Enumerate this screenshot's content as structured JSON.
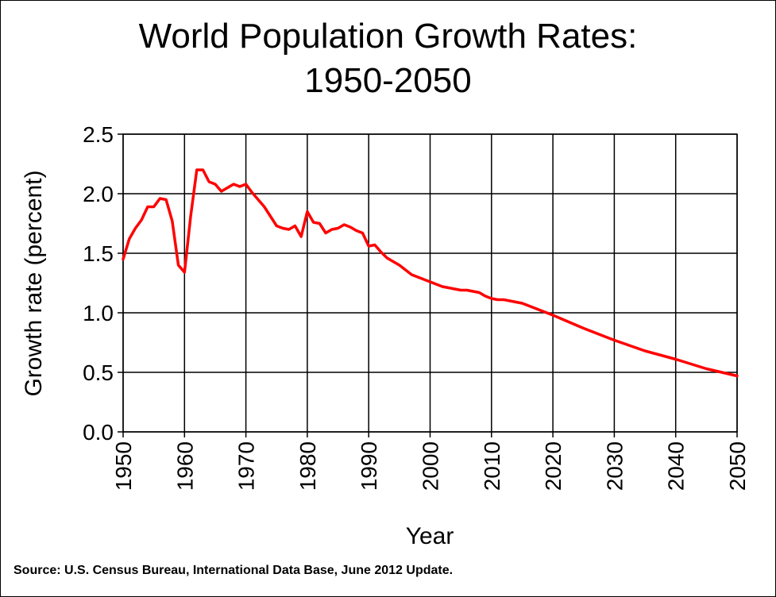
{
  "chart_data": {
    "type": "line",
    "title_line1": "World Population Growth Rates:",
    "title_line2": "1950-2050",
    "xlabel": "Year",
    "ylabel": "Growth rate (percent)",
    "source": "Source: U.S. Census Bureau, International Data Base, June 2012 Update.",
    "xlim": [
      1950,
      2050
    ],
    "ylim": [
      0,
      2.5
    ],
    "x_ticks": [
      "1950",
      "1960",
      "1970",
      "1980",
      "1990",
      "2000",
      "2010",
      "2020",
      "2030",
      "2040",
      "2050"
    ],
    "y_ticks": [
      "0.0",
      "0.5",
      "1.0",
      "1.5",
      "2.0",
      "2.5"
    ],
    "grid": true,
    "line_color": "#ff0000",
    "series": [
      {
        "x": [
          1950,
          1951,
          1952,
          1953,
          1954,
          1955,
          1956,
          1957,
          1958,
          1959,
          1960,
          1961,
          1962,
          1963,
          1964,
          1965,
          1966,
          1967,
          1968,
          1969,
          1970,
          1971,
          1972,
          1973,
          1974,
          1975,
          1976,
          1977,
          1978,
          1979,
          1980,
          1981,
          1982,
          1983,
          1984,
          1985,
          1986,
          1987,
          1988,
          1989,
          1990,
          1991,
          1992,
          1993,
          1994,
          1995,
          1996,
          1997,
          1998,
          1999,
          2000,
          2001,
          2002,
          2003,
          2004,
          2005,
          2006,
          2007,
          2008,
          2009,
          2010,
          2011,
          2012,
          2013,
          2014,
          2015,
          2016,
          2017,
          2018,
          2019,
          2020,
          2025,
          2030,
          2035,
          2040,
          2045,
          2050
        ],
        "y": [
          1.45,
          1.62,
          1.71,
          1.78,
          1.89,
          1.89,
          1.96,
          1.95,
          1.77,
          1.4,
          1.34,
          1.81,
          2.2,
          2.2,
          2.1,
          2.08,
          2.02,
          2.05,
          2.08,
          2.06,
          2.08,
          2.01,
          1.95,
          1.89,
          1.81,
          1.73,
          1.71,
          1.7,
          1.73,
          1.64,
          1.85,
          1.76,
          1.75,
          1.67,
          1.7,
          1.71,
          1.74,
          1.72,
          1.69,
          1.67,
          1.56,
          1.57,
          1.51,
          1.46,
          1.43,
          1.4,
          1.36,
          1.32,
          1.3,
          1.28,
          1.26,
          1.24,
          1.22,
          1.21,
          1.2,
          1.19,
          1.19,
          1.18,
          1.17,
          1.14,
          1.12,
          1.11,
          1.11,
          1.1,
          1.09,
          1.08,
          1.06,
          1.04,
          1.02,
          1.0,
          0.98,
          0.87,
          0.77,
          0.68,
          0.61,
          0.53,
          0.47
        ]
      }
    ]
  }
}
